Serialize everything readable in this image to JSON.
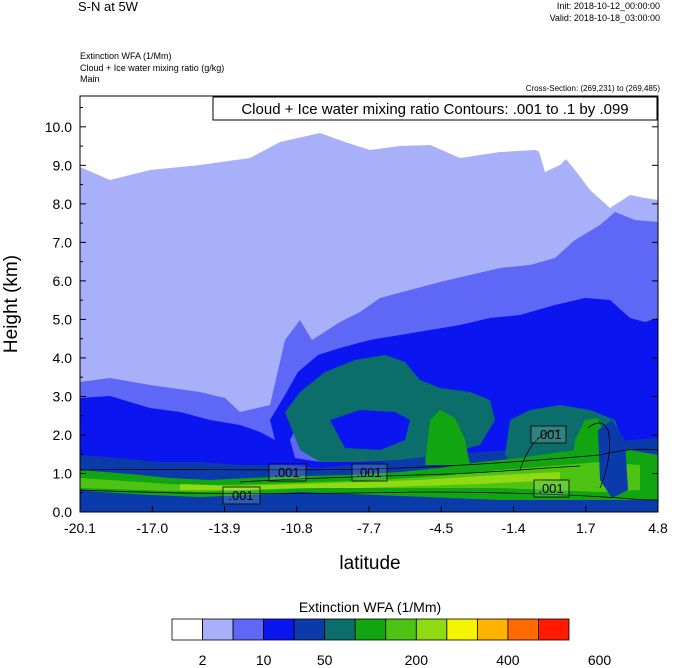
{
  "header": {
    "title": "S-N at 5W",
    "init": "Init: 2018-10-12_00:00:00",
    "valid": "Valid: 2018-10-18_03:00:00",
    "field_lines": [
      "Extinction WFA   (1/Mm)",
      "Cloud + Ice water mixing ratio   (g/kg)",
      "Main"
    ],
    "cross_section": "Cross-Section: (269,231) to (269,485)"
  },
  "chart_data": {
    "type": "heatmap",
    "title": "Cloud + Ice water mixing ratio Contours: .001 to .1 by .099",
    "xlabel": "latitude",
    "ylabel": "Height (km)",
    "xlim": [
      -20.1,
      4.8
    ],
    "ylim": [
      0.0,
      10.8
    ],
    "x_ticks": [
      "-20.1",
      "-17.0",
      "-13.9",
      "-10.8",
      "-7.7",
      "-4.5",
      "-1.4",
      "1.7",
      "4.8"
    ],
    "y_ticks": [
      "0.0",
      "1.0",
      "2.0",
      "3.0",
      "4.0",
      "5.0",
      "6.0",
      "7.0",
      "8.0",
      "9.0",
      "10.0"
    ],
    "colorbar": {
      "title": "Extinction WFA  (1/Mm)",
      "colors": [
        "#ffffff",
        "#a9b0fa",
        "#5f67f7",
        "#0a15f0",
        "#0b3bab",
        "#0c6e6a",
        "#11a511",
        "#4ec314",
        "#8fda10",
        "#f5f500",
        "#ffb300",
        "#ff6a00",
        "#ff1a00"
      ],
      "labels": [
        "2",
        "10",
        "50",
        "200",
        "400",
        "600"
      ]
    },
    "contour_labels": [
      ".001",
      ".001",
      ".001",
      ".001",
      ".001"
    ]
  }
}
